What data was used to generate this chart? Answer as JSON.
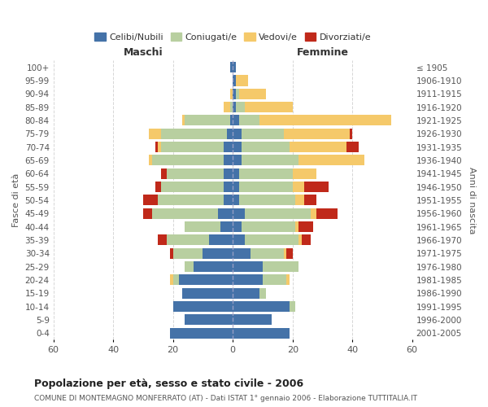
{
  "age_groups_bottom_to_top": [
    "0-4",
    "5-9",
    "10-14",
    "15-19",
    "20-24",
    "25-29",
    "30-34",
    "35-39",
    "40-44",
    "45-49",
    "50-54",
    "55-59",
    "60-64",
    "65-69",
    "70-74",
    "75-79",
    "80-84",
    "85-89",
    "90-94",
    "95-99",
    "100+"
  ],
  "birth_years_bottom_to_top": [
    "2001-2005",
    "1996-2000",
    "1991-1995",
    "1986-1990",
    "1981-1985",
    "1976-1980",
    "1971-1975",
    "1966-1970",
    "1961-1965",
    "1956-1960",
    "1951-1955",
    "1946-1950",
    "1941-1945",
    "1936-1940",
    "1931-1935",
    "1926-1930",
    "1921-1925",
    "1916-1920",
    "1911-1915",
    "1906-1910",
    "≤ 1905"
  ],
  "colors": {
    "celibi": "#4472a8",
    "coniugati": "#b8cfa0",
    "vedovi": "#f5c96a",
    "divorziati": "#c0291a"
  },
  "males": {
    "celibi": [
      21,
      16,
      20,
      17,
      18,
      13,
      10,
      8,
      4,
      5,
      3,
      3,
      3,
      3,
      3,
      2,
      1,
      0,
      0,
      0,
      1
    ],
    "coniugati": [
      0,
      0,
      0,
      0,
      2,
      3,
      10,
      14,
      12,
      22,
      22,
      21,
      19,
      24,
      21,
      22,
      15,
      1,
      0,
      0,
      0
    ],
    "vedovi": [
      0,
      0,
      0,
      0,
      1,
      0,
      0,
      0,
      0,
      0,
      0,
      0,
      0,
      1,
      1,
      4,
      1,
      2,
      1,
      0,
      0
    ],
    "divorziati": [
      0,
      0,
      0,
      0,
      0,
      0,
      1,
      3,
      0,
      3,
      5,
      2,
      2,
      0,
      1,
      0,
      0,
      0,
      0,
      0,
      0
    ]
  },
  "females": {
    "celibi": [
      19,
      13,
      19,
      9,
      10,
      10,
      6,
      4,
      3,
      4,
      2,
      2,
      2,
      3,
      3,
      3,
      2,
      1,
      1,
      1,
      1
    ],
    "coniugati": [
      0,
      0,
      2,
      2,
      8,
      12,
      11,
      18,
      18,
      22,
      19,
      18,
      18,
      19,
      16,
      14,
      7,
      3,
      1,
      0,
      0
    ],
    "vedovi": [
      0,
      0,
      0,
      0,
      1,
      0,
      1,
      1,
      1,
      2,
      3,
      4,
      8,
      22,
      19,
      22,
      44,
      16,
      9,
      4,
      0
    ],
    "divorziati": [
      0,
      0,
      0,
      0,
      0,
      0,
      2,
      3,
      5,
      7,
      4,
      8,
      0,
      0,
      4,
      1,
      0,
      0,
      0,
      0,
      0
    ]
  },
  "xlim": 60,
  "title": "Popolazione per età, sesso e stato civile - 2006",
  "subtitle": "COMUNE DI MONTEMAGNO MONFERRATO (AT) - Dati ISTAT 1° gennaio 2006 - Elaborazione TUTTITALIA.IT",
  "xlabel_left": "Maschi",
  "xlabel_right": "Femmine",
  "ylabel_left": "Fasce di età",
  "ylabel_right": "Anni di nascita",
  "legend_labels": [
    "Celibi/Nubili",
    "Coniugati/e",
    "Vedovi/e",
    "Divorziati/e"
  ],
  "bg_color": "#ffffff",
  "grid_color": "#cccccc",
  "bar_height": 0.8
}
